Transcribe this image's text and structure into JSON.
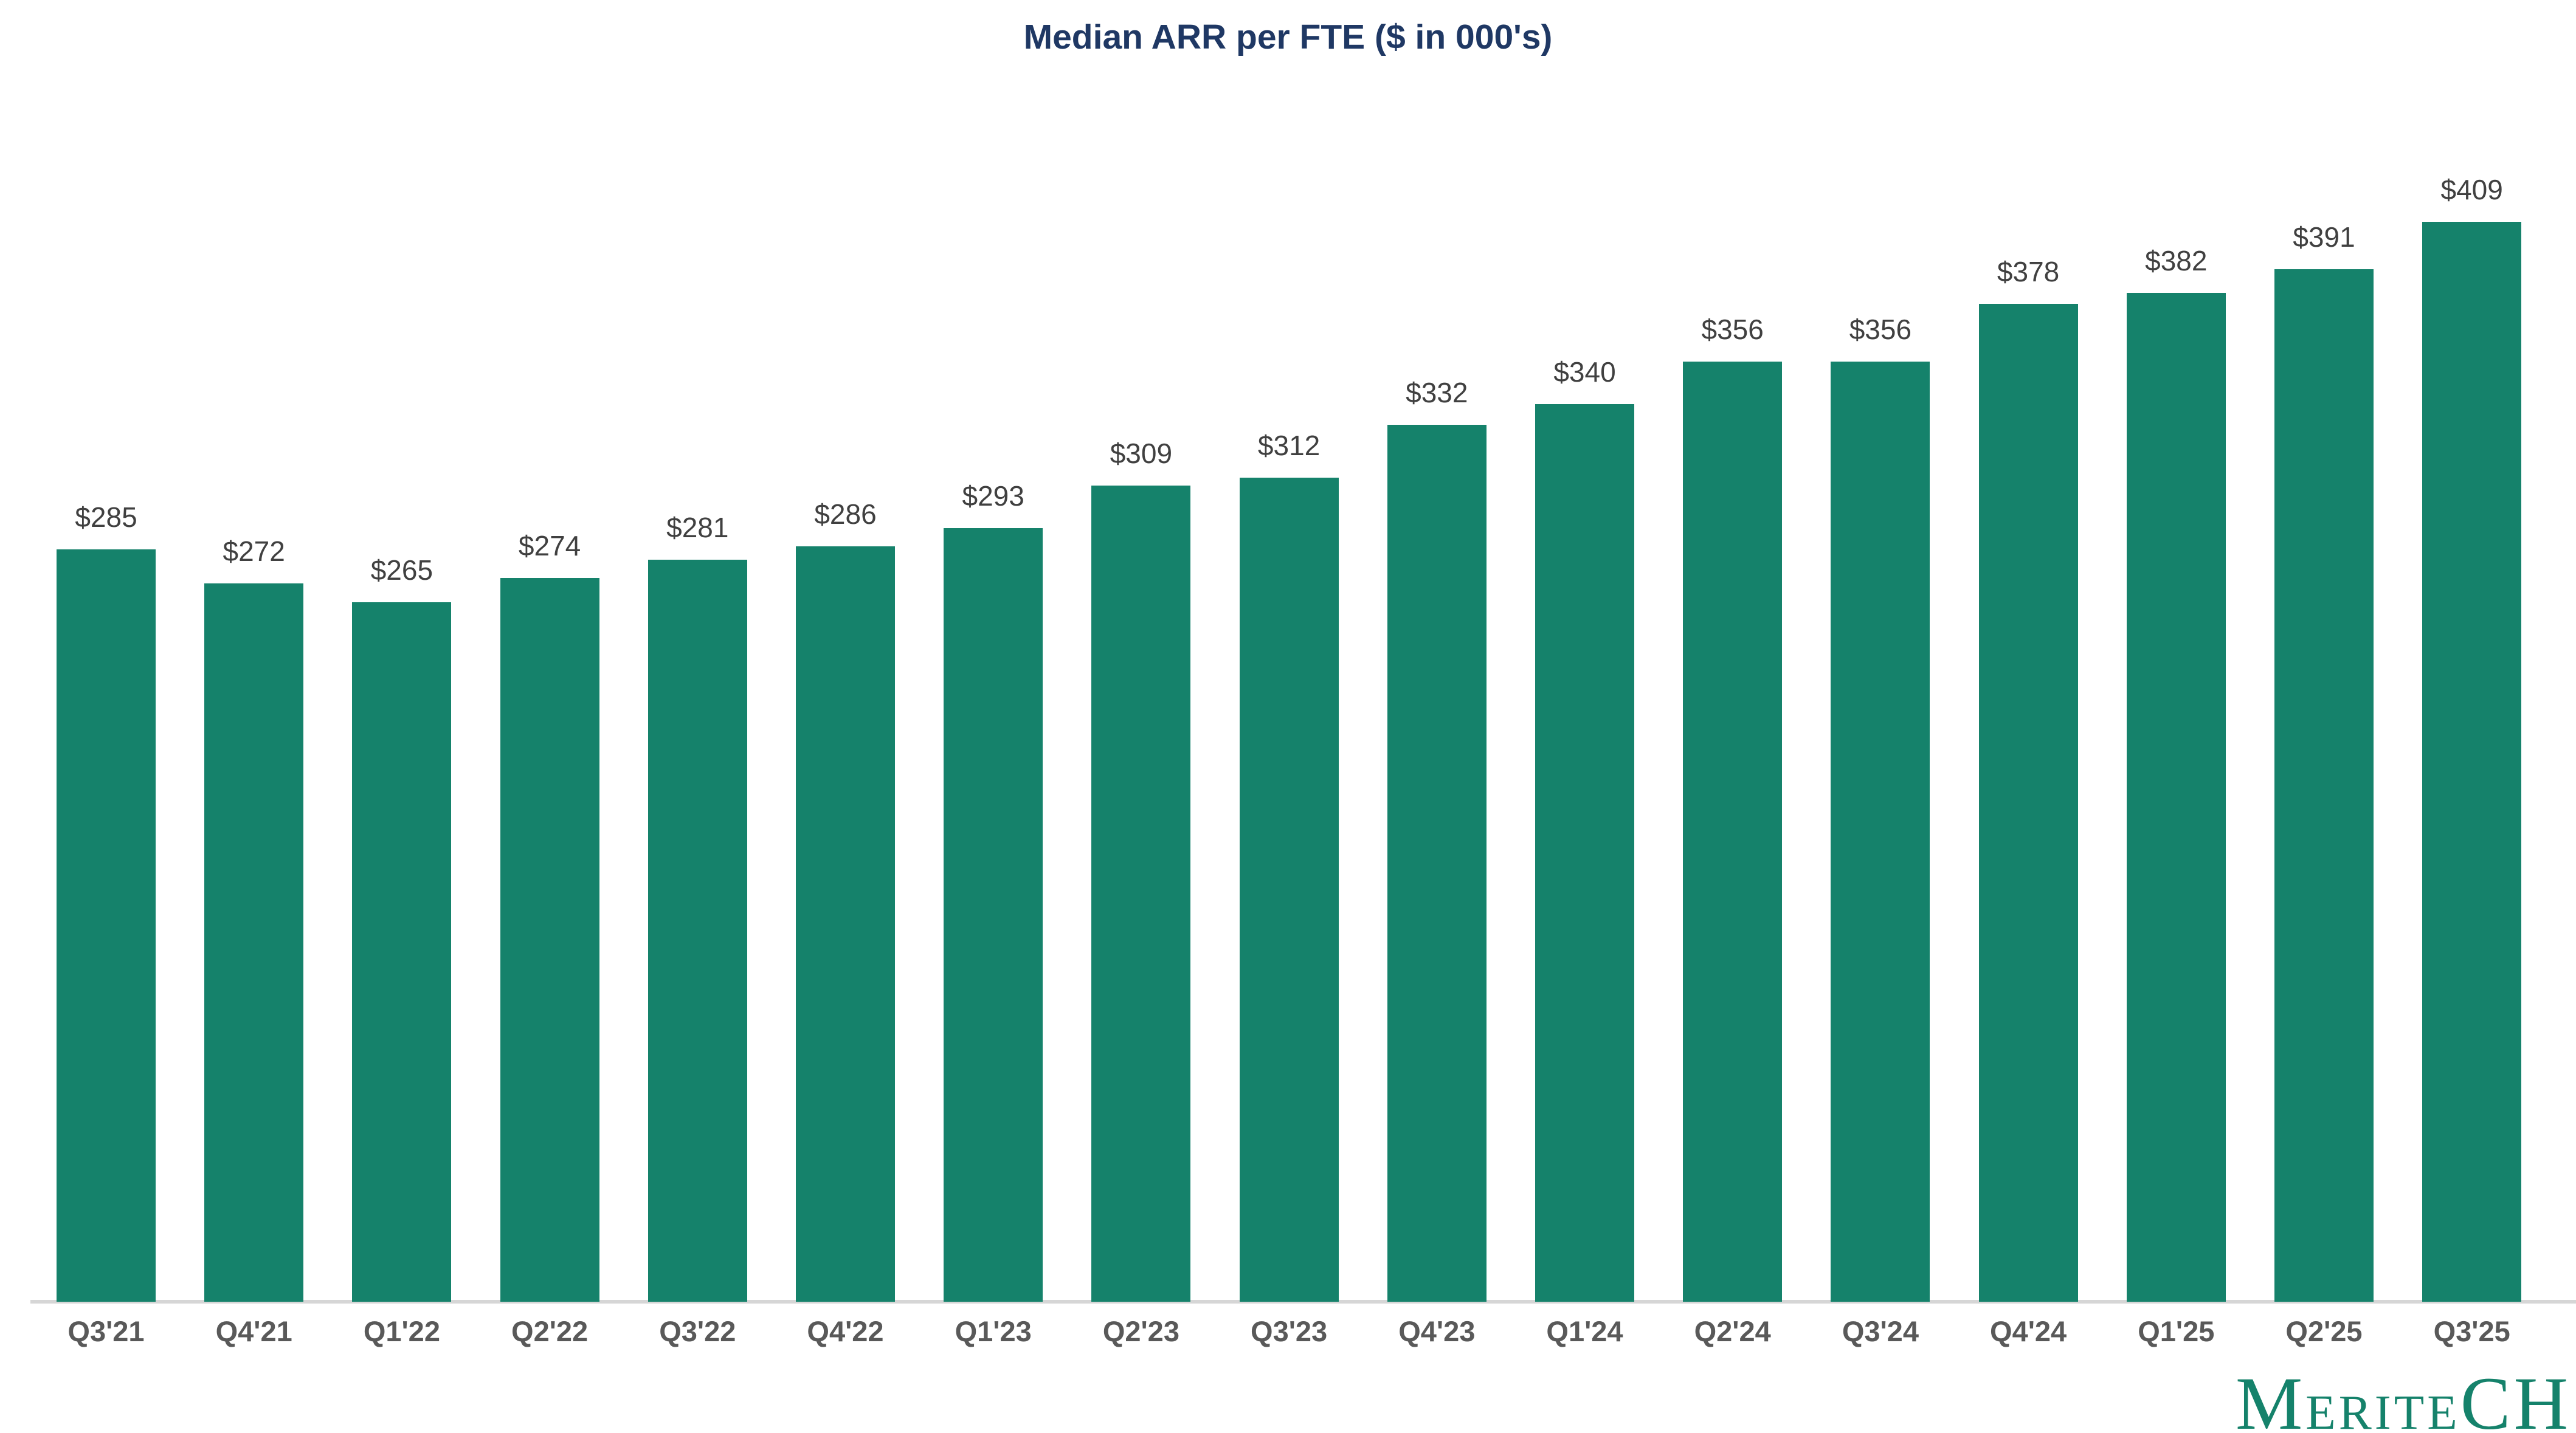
{
  "chart_data": {
    "type": "bar",
    "title": "Median ARR per FTE ($ in 000's)",
    "categories": [
      "Q3'21",
      "Q4'21",
      "Q1'22",
      "Q2'22",
      "Q3'22",
      "Q4'22",
      "Q1'23",
      "Q2'23",
      "Q3'23",
      "Q4'23",
      "Q1'24",
      "Q2'24",
      "Q3'24",
      "Q4'24",
      "Q1'25",
      "Q2'25",
      "Q3'25"
    ],
    "values": [
      285,
      272,
      265,
      274,
      281,
      286,
      293,
      309,
      312,
      332,
      340,
      356,
      356,
      378,
      382,
      391,
      409
    ],
    "data_labels": [
      "$285",
      "$272",
      "$265",
      "$274",
      "$281",
      "$286",
      "$293",
      "$309",
      "$312",
      "$332",
      "$340",
      "$356",
      "$356",
      "$378",
      "$382",
      "$391",
      "$409"
    ],
    "xlabel": "",
    "ylabel": "",
    "ylim": [
      0,
      440
    ],
    "gridlines": false,
    "legend": "none",
    "y_axis_visible": false,
    "bar_color": "#15826B",
    "title_color": "#1F3864",
    "value_label_color": "#404040",
    "axis_label_color": "#595959",
    "axis_line_color": "#D6D6D6"
  },
  "branding": {
    "logo_text": "MERITECH",
    "logo_first": "M",
    "logo_middle": "ERITE",
    "logo_last": "CH",
    "logo_color": "#15826B"
  }
}
